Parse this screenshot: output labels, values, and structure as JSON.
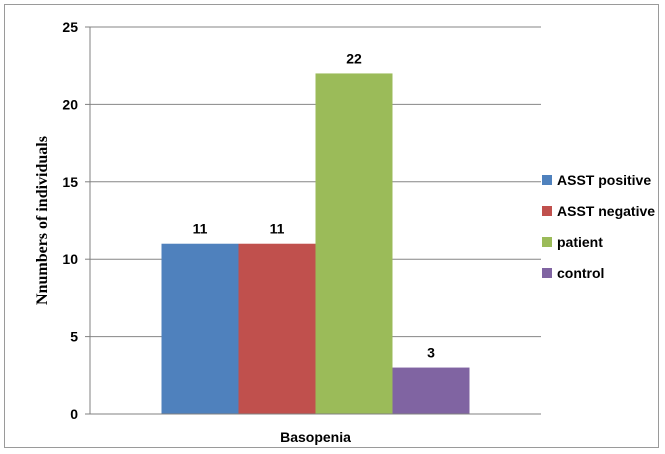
{
  "chart_data": {
    "type": "bar",
    "title": "",
    "xlabel": "",
    "ylabel": "Nnumbers of individuals",
    "categories": [
      "Basopenia"
    ],
    "ylim": [
      0,
      25
    ],
    "yticks": [
      0,
      5,
      10,
      15,
      20,
      25
    ],
    "grid": true,
    "legend": "right",
    "series": [
      {
        "name": "ASST positive",
        "values": [
          11
        ],
        "color": "#4f81bd"
      },
      {
        "name": "ASST negative",
        "values": [
          11
        ],
        "color": "#c0504d"
      },
      {
        "name": "patient",
        "values": [
          22
        ],
        "color": "#9bbb59"
      },
      {
        "name": "control",
        "values": [
          3
        ],
        "color": "#8064a2"
      }
    ]
  }
}
